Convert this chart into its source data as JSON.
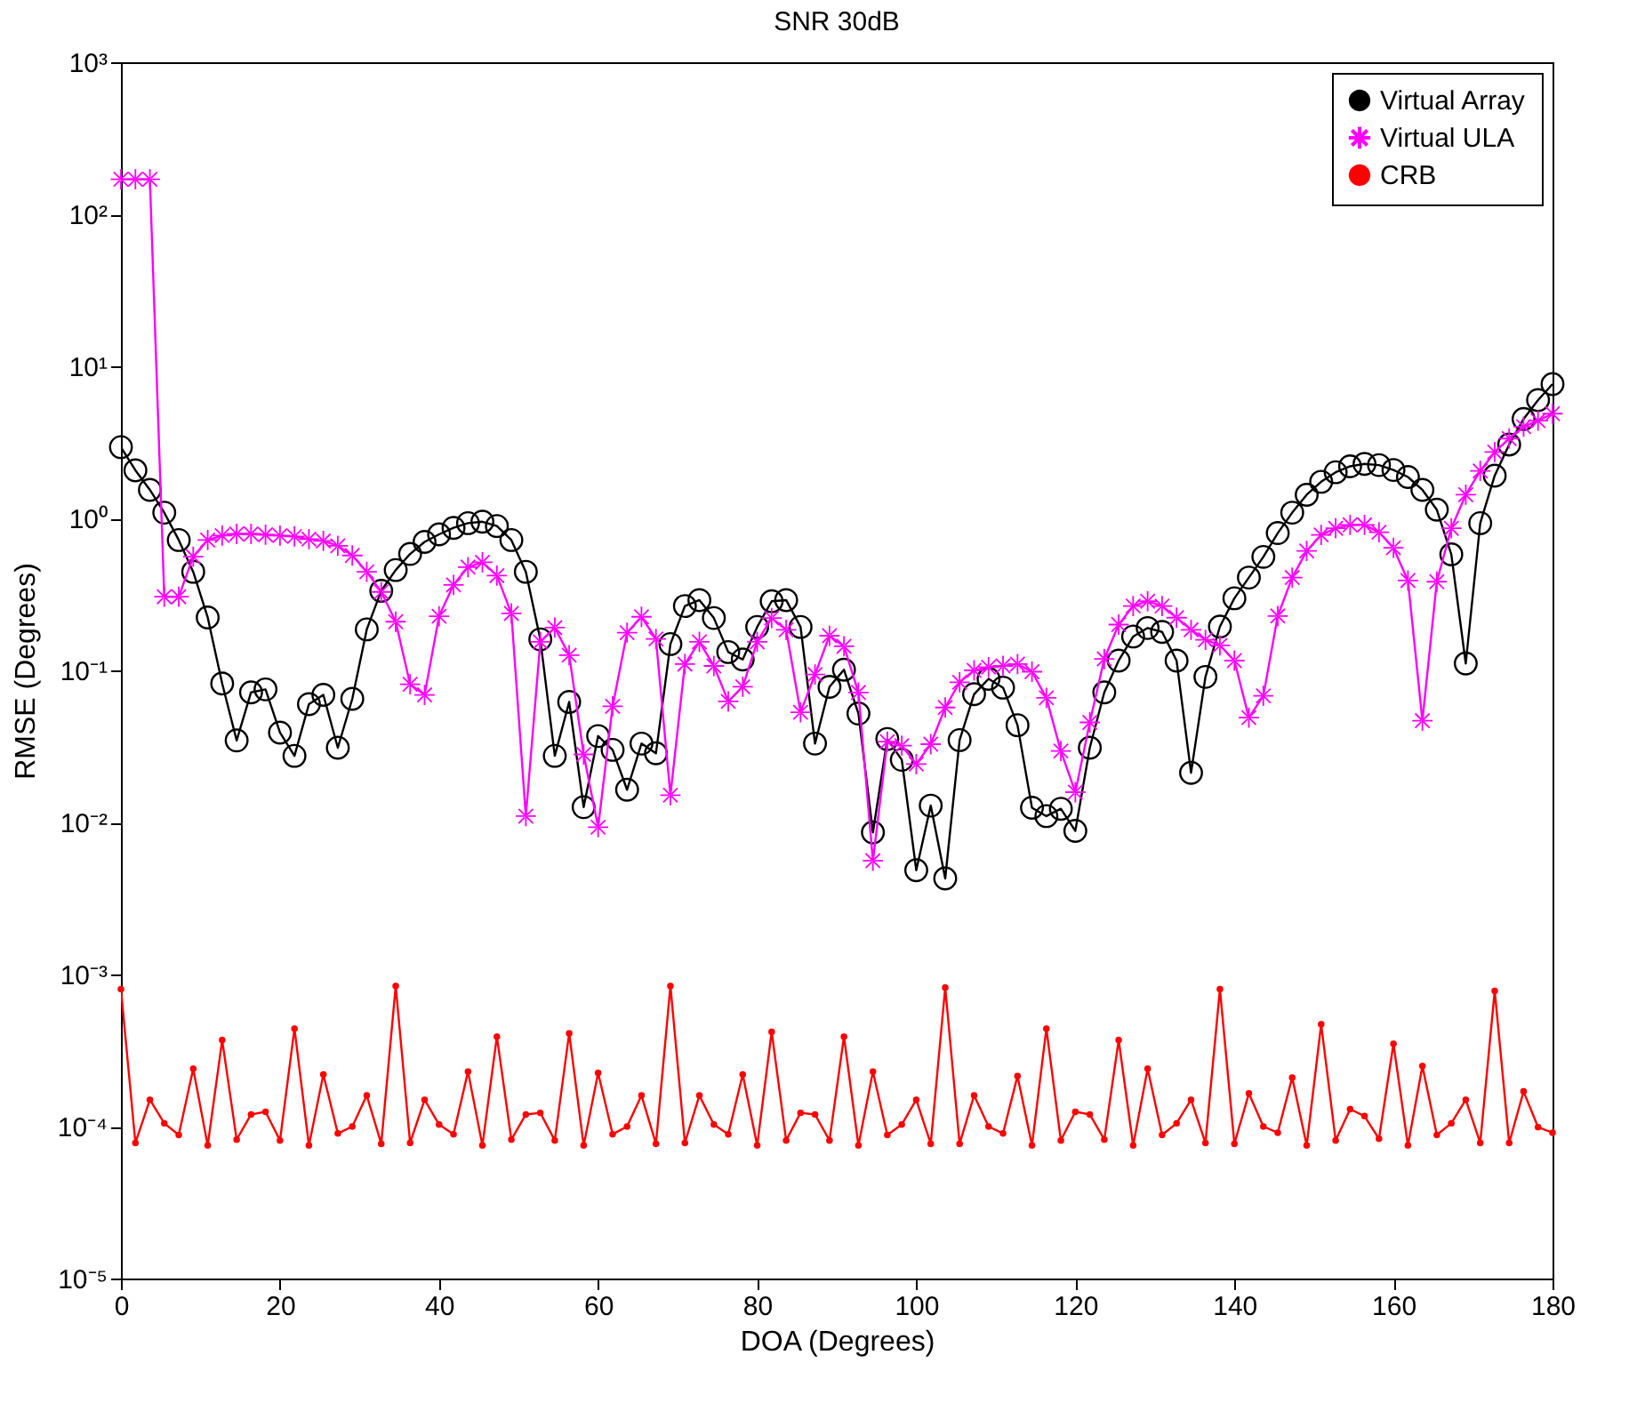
{
  "chart_data": {
    "type": "line",
    "title": "SNR 30dB",
    "xlabel": "DOA (Degrees)",
    "ylabel": "RMSE (Degrees)",
    "x": [
      0,
      1.82,
      3.64,
      5.45,
      7.27,
      9.09,
      10.91,
      12.73,
      14.55,
      16.36,
      18.18,
      20,
      21.82,
      23.64,
      25.45,
      27.27,
      29.09,
      30.91,
      32.73,
      34.55,
      36.36,
      38.18,
      40,
      41.82,
      43.64,
      45.45,
      47.27,
      49.09,
      50.91,
      52.73,
      54.55,
      56.36,
      58.18,
      60,
      61.82,
      63.64,
      65.45,
      67.27,
      69.09,
      70.91,
      72.73,
      74.55,
      76.36,
      78.18,
      80,
      81.82,
      83.64,
      85.45,
      87.27,
      89.09,
      90.91,
      92.73,
      94.55,
      96.36,
      98.18,
      100,
      101.82,
      103.64,
      105.45,
      107.27,
      109.09,
      110.91,
      112.73,
      114.55,
      116.36,
      118.18,
      120,
      121.82,
      123.64,
      125.45,
      127.27,
      129.09,
      130.91,
      132.73,
      134.55,
      136.36,
      138.18,
      140,
      141.82,
      143.64,
      145.45,
      147.27,
      149.09,
      150.91,
      152.73,
      154.55,
      156.36,
      158.18,
      160,
      161.82,
      163.64,
      165.45,
      167.27,
      169.09,
      170.91,
      172.73,
      174.55,
      176.36,
      178.18,
      180
    ],
    "series": [
      {
        "name": "Virtual Array",
        "color": "#000000",
        "marker": "circle",
        "values": [
          2.94,
          2.07,
          1.54,
          1.09,
          0.72,
          0.445,
          0.223,
          0.082,
          0.0346,
          0.0717,
          0.075,
          0.039,
          0.0274,
          0.06,
          0.069,
          0.031,
          0.065,
          0.186,
          0.334,
          0.457,
          0.583,
          0.7,
          0.785,
          0.866,
          0.93,
          0.95,
          0.89,
          0.72,
          0.445,
          0.16,
          0.0274,
          0.062,
          0.0126,
          0.037,
          0.03,
          0.0164,
          0.033,
          0.0285,
          0.149,
          0.265,
          0.29,
          0.221,
          0.132,
          0.118,
          0.193,
          0.285,
          0.29,
          0.193,
          0.033,
          0.078,
          0.101,
          0.052,
          0.0086,
          0.0354,
          0.0258,
          0.00485,
          0.0129,
          0.00428,
          0.0348,
          0.0697,
          0.088,
          0.077,
          0.0436,
          0.0125,
          0.011,
          0.0123,
          0.0088,
          0.031,
          0.0716,
          0.116,
          0.167,
          0.19,
          0.179,
          0.116,
          0.0212,
          0.0906,
          0.194,
          0.298,
          0.408,
          0.558,
          0.8,
          1.09,
          1.43,
          1.74,
          2.01,
          2.2,
          2.28,
          2.24,
          2.08,
          1.87,
          1.54,
          1.14,
          0.58,
          0.111,
          0.93,
          1.91,
          3.06,
          4.5,
          6.0,
          7.64
        ]
      },
      {
        "name": "Virtual ULA",
        "color": "#ff00ff",
        "marker": "star",
        "values": [
          170,
          170,
          170,
          0.305,
          0.305,
          0.56,
          0.72,
          0.77,
          0.79,
          0.79,
          0.78,
          0.77,
          0.76,
          0.73,
          0.71,
          0.66,
          0.57,
          0.445,
          0.328,
          0.209,
          0.081,
          0.069,
          0.227,
          0.365,
          0.478,
          0.514,
          0.42,
          0.237,
          0.011,
          0.154,
          0.191,
          0.126,
          0.028,
          0.0093,
          0.058,
          0.177,
          0.225,
          0.161,
          0.0151,
          0.11,
          0.154,
          0.107,
          0.0625,
          0.078,
          0.154,
          0.221,
          0.185,
          0.053,
          0.094,
          0.169,
          0.144,
          0.0716,
          0.0056,
          0.034,
          0.032,
          0.0242,
          0.0327,
          0.057,
          0.0835,
          0.1,
          0.105,
          0.107,
          0.11,
          0.098,
          0.066,
          0.0295,
          0.0158,
          0.0455,
          0.119,
          0.2,
          0.265,
          0.285,
          0.265,
          0.222,
          0.185,
          0.159,
          0.146,
          0.116,
          0.0489,
          0.068,
          0.228,
          0.408,
          0.611,
          0.778,
          0.86,
          0.906,
          0.906,
          0.81,
          0.64,
          0.39,
          0.0467,
          0.383,
          0.86,
          1.43,
          2.05,
          2.73,
          3.35,
          4.01,
          4.39,
          4.88
        ]
      },
      {
        "name": "CRB",
        "color": "#ff0000",
        "marker": "circle",
        "values": [
          0.0008,
          7.8e-05,
          0.00015,
          0.000105,
          8.8e-05,
          0.00024,
          7.5e-05,
          0.00037,
          8.2e-05,
          0.00012,
          0.000125,
          8.1e-05,
          0.00044,
          7.5e-05,
          0.00022,
          9e-05,
          0.0001,
          0.00016,
          7.7e-05,
          0.00084,
          7.8e-05,
          0.00015,
          0.000103,
          8.9e-05,
          0.00023,
          7.5e-05,
          0.00039,
          8.2e-05,
          0.00012,
          0.000123,
          8.1e-05,
          0.00041,
          7.5e-05,
          0.000225,
          8.9e-05,
          0.0001,
          0.00016,
          7.7e-05,
          0.00084,
          7.8e-05,
          0.00016,
          0.000103,
          8.9e-05,
          0.00022,
          7.5e-05,
          0.00042,
          8.1e-05,
          0.000123,
          0.00012,
          8.1e-05,
          0.00039,
          7.5e-05,
          0.00023,
          8.8e-05,
          0.000103,
          0.00015,
          7.7e-05,
          0.00082,
          7.7e-05,
          0.00016,
          0.0001,
          9e-05,
          0.000215,
          7.5e-05,
          0.00044,
          8.1e-05,
          0.000125,
          0.00012,
          8.2e-05,
          0.00037,
          7.5e-05,
          0.00024,
          8.8e-05,
          0.000105,
          0.00015,
          7.8e-05,
          0.0008,
          7.7e-05,
          0.000165,
          0.0001,
          9.1e-05,
          0.00021,
          7.5e-05,
          0.00047,
          8.1e-05,
          0.00013,
          0.000117,
          8.3e-05,
          0.00035,
          7.5e-05,
          0.00025,
          8.8e-05,
          0.000105,
          0.00015,
          7.8e-05,
          0.00078,
          7.8e-05,
          0.00017,
          9.9e-05,
          9.1e-05
        ]
      }
    ],
    "log": true,
    "xlim": [
      0,
      180
    ],
    "xticks": [
      0,
      20,
      40,
      60,
      80,
      100,
      120,
      140,
      160,
      180
    ],
    "ylim": [
      1e-05,
      1000
    ],
    "yticks": [
      {
        "value": 1e-05,
        "label": "10⁻⁵"
      },
      {
        "value": 0.0001,
        "label": "10⁻⁴"
      },
      {
        "value": 0.001,
        "label": "10⁻³"
      },
      {
        "value": 0.01,
        "label": "10⁻²"
      },
      {
        "value": 0.1,
        "label": "10⁻¹"
      },
      {
        "value": 1,
        "label": "10⁰"
      },
      {
        "value": 10,
        "label": "10¹"
      },
      {
        "value": 100,
        "label": "10²"
      },
      {
        "value": 1000,
        "label": "10³"
      }
    ],
    "grid": false,
    "legend": "top right",
    "line_style": "solid"
  }
}
